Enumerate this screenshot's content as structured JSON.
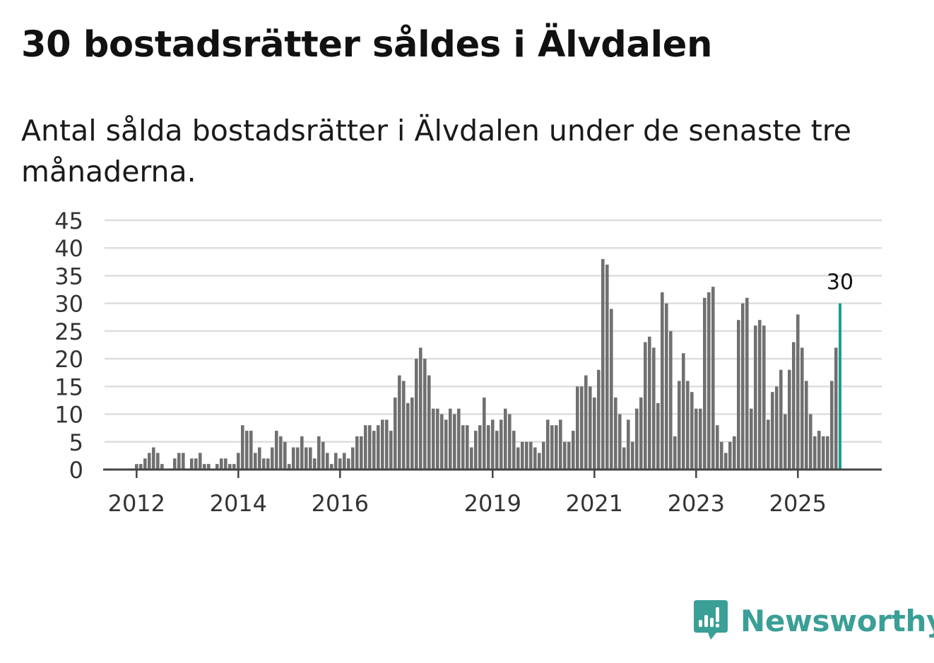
{
  "header": {
    "title": "30 bostadsrätter såldes i Älvdalen",
    "subtitle": "Antal sålda bostadsrätter i Älvdalen under de senaste tre månaderna."
  },
  "brand": {
    "name": "Newsworthy",
    "logo_icon": "newsworthy-chart-bubble-icon"
  },
  "colors": {
    "bar": "#707070",
    "highlight": "#1a9e8f",
    "grid": "#dddddd",
    "axis": "#444444",
    "brand": "#3a9f96"
  },
  "chart_data": {
    "type": "bar",
    "title": "30 bostadsrätter såldes i Älvdalen",
    "xlabel": "",
    "ylabel": "",
    "ylim": [
      0,
      45
    ],
    "yticks": [
      0,
      5,
      10,
      15,
      20,
      25,
      30,
      35,
      40,
      45
    ],
    "x_start": {
      "year": 2011,
      "month": 10
    },
    "xticks": [
      {
        "label": "2012",
        "year": 2012,
        "month": 1
      },
      {
        "label": "2014",
        "year": 2014,
        "month": 1
      },
      {
        "label": "2016",
        "year": 2016,
        "month": 1
      },
      {
        "label": "2019",
        "year": 2019,
        "month": 1
      },
      {
        "label": "2021",
        "year": 2021,
        "month": 1
      },
      {
        "label": "2023",
        "year": 2023,
        "month": 1
      },
      {
        "label": "2025",
        "year": 2025,
        "month": 1
      }
    ],
    "grid": true,
    "highlight_last": true,
    "last_value_label": "30",
    "values": [
      0,
      0,
      0,
      1,
      1,
      2,
      3,
      4,
      3,
      1,
      0,
      0,
      2,
      3,
      3,
      0,
      2,
      2,
      3,
      1,
      1,
      0,
      1,
      2,
      2,
      1,
      1,
      3,
      8,
      7,
      7,
      3,
      4,
      2,
      2,
      4,
      7,
      6,
      5,
      1,
      4,
      4,
      6,
      4,
      4,
      2,
      6,
      5,
      3,
      1,
      3,
      2,
      3,
      2,
      4,
      6,
      6,
      8,
      8,
      7,
      8,
      9,
      9,
      7,
      13,
      17,
      16,
      12,
      13,
      20,
      22,
      20,
      17,
      11,
      11,
      10,
      9,
      11,
      10,
      11,
      8,
      8,
      4,
      7,
      8,
      13,
      8,
      9,
      7,
      9,
      11,
      10,
      7,
      4,
      5,
      5,
      5,
      4,
      3,
      5,
      9,
      8,
      8,
      9,
      5,
      5,
      7,
      15,
      15,
      17,
      15,
      13,
      18,
      38,
      37,
      29,
      13,
      10,
      4,
      9,
      5,
      11,
      13,
      23,
      24,
      22,
      12,
      32,
      30,
      25,
      6,
      16,
      21,
      16,
      14,
      11,
      11,
      31,
      32,
      33,
      8,
      5,
      3,
      5,
      6,
      27,
      30,
      31,
      11,
      26,
      27,
      26,
      9,
      14,
      15,
      18,
      10,
      18,
      23,
      28,
      22,
      16,
      10,
      6,
      7,
      6,
      6,
      16,
      22,
      30
    ]
  }
}
